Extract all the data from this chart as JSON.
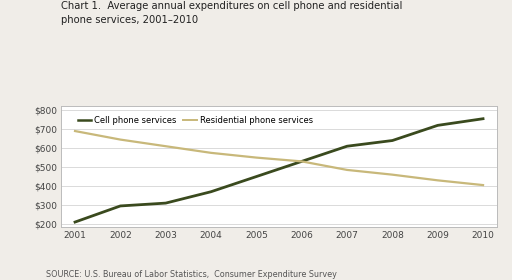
{
  "years": [
    2001,
    2002,
    2003,
    2004,
    2005,
    2006,
    2007,
    2008,
    2009,
    2010
  ],
  "cell_phone": [
    210,
    295,
    310,
    370,
    450,
    530,
    610,
    640,
    720,
    755
  ],
  "residential": [
    690,
    645,
    610,
    575,
    550,
    530,
    485,
    460,
    430,
    405
  ],
  "cell_color": "#3a4a1e",
  "residential_color": "#c8b87a",
  "title_line1": "Chart 1.  Average annual expenditures on cell phone and residential",
  "title_line2": "phone services, 2001–2010",
  "ylabel_ticks": [
    "$200",
    "$300",
    "$400",
    "$500",
    "$600",
    "$700",
    "$800"
  ],
  "ytick_values": [
    200,
    300,
    400,
    500,
    600,
    700,
    800
  ],
  "ylim": [
    185,
    820
  ],
  "xlim": [
    2000.7,
    2010.3
  ],
  "source_text": "SOURCE: U.S. Bureau of Labor Statistics,  Consumer Expenditure Survey",
  "legend_cell": "Cell phone services",
  "legend_residential": "Residential phone services",
  "bg_color": "#f0ede8",
  "plot_bg": "#ffffff"
}
